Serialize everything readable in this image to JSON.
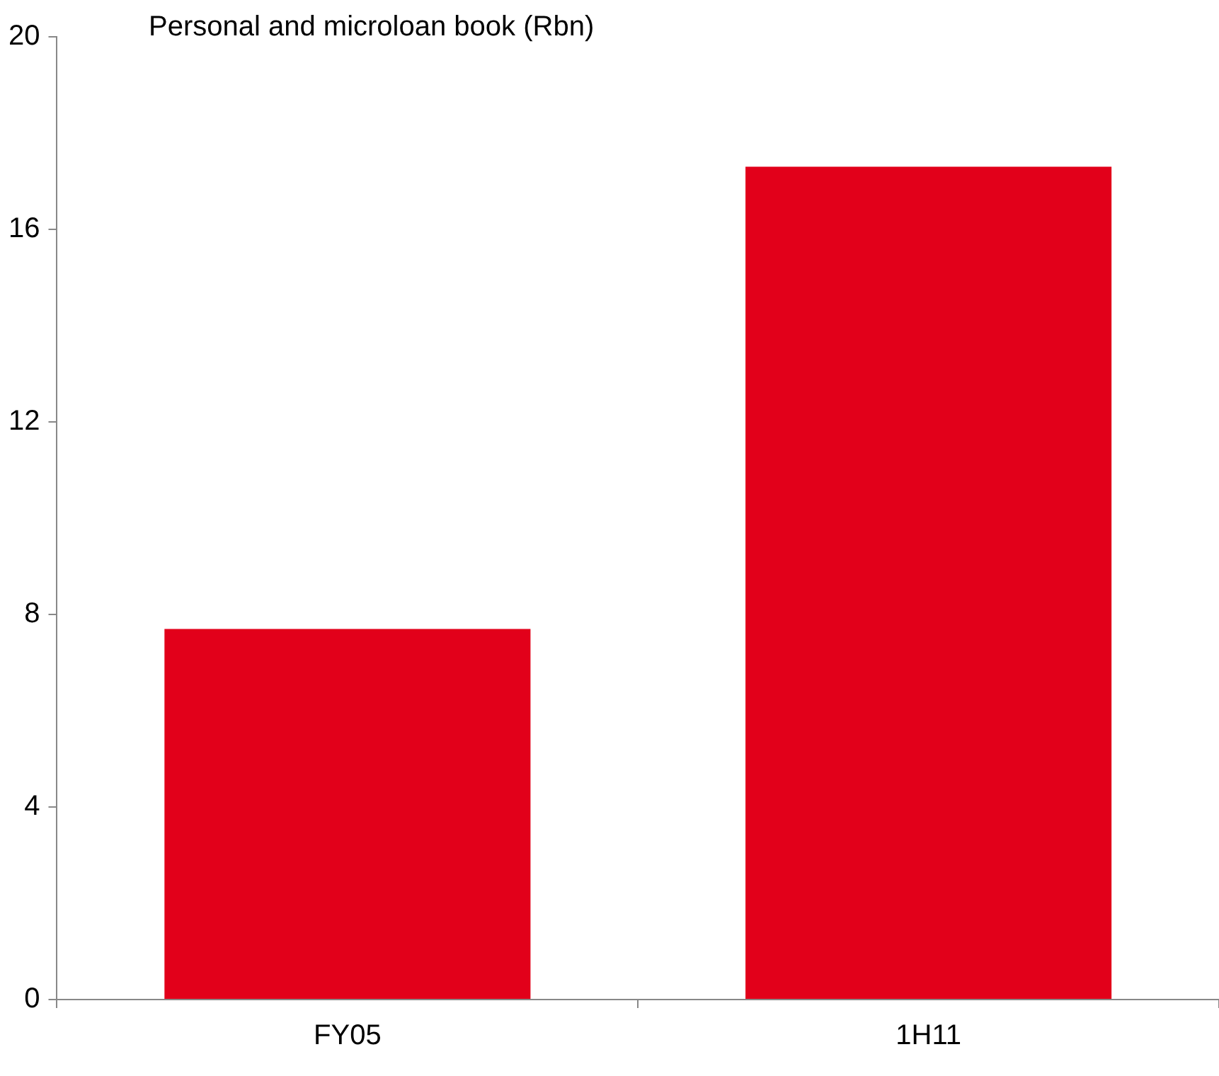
{
  "chart_data": {
    "type": "bar",
    "title": "Personal and microloan book (Rbn)",
    "categories": [
      "FY05",
      "1H11"
    ],
    "values": [
      7.7,
      17.3
    ],
    "color": "#e2001a",
    "ylim": [
      0,
      20
    ],
    "yticks": [
      0,
      4,
      8,
      12,
      16,
      20
    ],
    "grid": false,
    "legend": false
  }
}
